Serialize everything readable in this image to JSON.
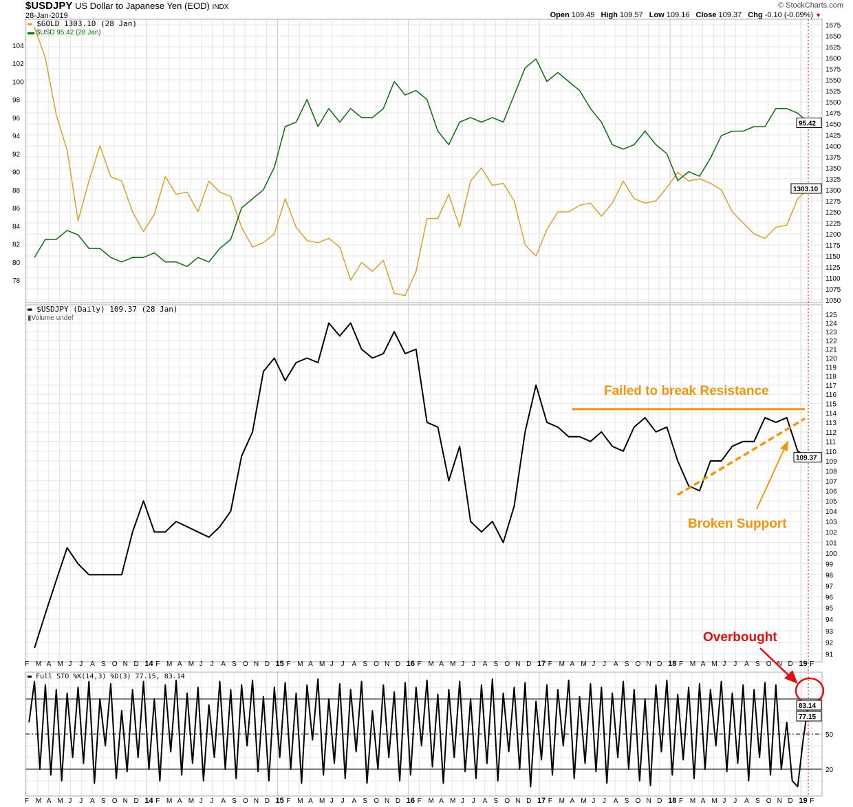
{
  "header": {
    "symbol": "$USDJPY",
    "description": "US Dollar to Japanese Yen (EOD)",
    "exchange": "INDX",
    "date": "28-Jan-2019",
    "brand": "© StockCharts.com",
    "open_label": "Open",
    "open": "109.49",
    "high_label": "High",
    "high": "109.57",
    "low_label": "Low",
    "low": "109.16",
    "close_label": "Close",
    "close": "109.37",
    "chg_label": "Chg",
    "chg": "-0.10 (-0.09%)"
  },
  "colors": {
    "gold": "#d9a12a",
    "usd": "#0b6b0b",
    "price": "#000000",
    "annotation": "#f0960f",
    "overbought": "#e01010"
  },
  "chart_data": [
    {
      "type": "line",
      "title": "Overlay panel",
      "legend": [
        "$GOLD 1303.10 (28 Jan)",
        "$USD 95.42 (28 Jan)"
      ],
      "x_start": "Feb 2013",
      "x_step": "month",
      "series": [
        {
          "name": "$GOLD",
          "axis": "right",
          "last_label": "1303.10",
          "values": [
            1670,
            1600,
            1470,
            1390,
            1230,
            1320,
            1400,
            1330,
            1320,
            1250,
            1205,
            1245,
            1330,
            1290,
            1295,
            1250,
            1320,
            1295,
            1285,
            1215,
            1170,
            1180,
            1200,
            1280,
            1215,
            1185,
            1180,
            1190,
            1170,
            1095,
            1135,
            1115,
            1140,
            1065,
            1060,
            1115,
            1235,
            1235,
            1290,
            1215,
            1320,
            1350,
            1310,
            1315,
            1275,
            1175,
            1150,
            1210,
            1250,
            1250,
            1265,
            1270,
            1240,
            1270,
            1320,
            1280,
            1270,
            1275,
            1305,
            1340,
            1320,
            1325,
            1315,
            1300,
            1250,
            1225,
            1200,
            1190,
            1215,
            1220,
            1280,
            1303.1
          ]
        },
        {
          "name": "$USD",
          "axis": "left",
          "last_label": "95.42",
          "values": [
            80.5,
            82.5,
            82.5,
            83.5,
            83,
            81.5,
            81.5,
            80.5,
            80,
            80.5,
            80.5,
            81,
            80,
            80,
            79.5,
            80.5,
            80,
            81.5,
            82.5,
            86,
            87,
            88,
            90.5,
            95,
            95.5,
            98,
            95,
            97,
            95.5,
            97,
            96,
            96,
            97,
            100,
            98.5,
            99,
            98,
            94.5,
            93,
            95.5,
            96,
            95.5,
            96,
            95.5,
            98.5,
            101.5,
            102.5,
            100,
            101,
            100,
            99,
            97,
            95.5,
            93,
            92.5,
            93,
            94.5,
            93,
            92,
            89,
            90,
            89.5,
            91.5,
            94,
            94.5,
            94.5,
            95,
            95,
            97,
            97,
            96.5,
            95.42
          ]
        }
      ],
      "right_ticks": [
        "1675",
        "1650",
        "1625",
        "1600",
        "1575",
        "1550",
        "1525",
        "1500",
        "1475",
        "1450",
        "1425",
        "1400",
        "1375",
        "1350",
        "1325",
        "1300",
        "1275",
        "1250",
        "1225",
        "1200",
        "1175",
        "1150",
        "1125",
        "1100",
        "1075",
        "1050"
      ],
      "left_ticks": [
        "104",
        "102",
        "100",
        "98",
        "96",
        "94",
        "92",
        "90",
        "88",
        "86",
        "84",
        "82",
        "80",
        "78"
      ],
      "ylim_right": [
        1050,
        1675
      ],
      "ylim_left": [
        78,
        104
      ]
    },
    {
      "type": "line",
      "title": "Price panel",
      "legend": [
        "$USDJPY (Daily) 109.37 (28 Jan)",
        "Volume undef"
      ],
      "scale": "log",
      "series": [
        {
          "name": "$USDJPY",
          "last_label": "109.37",
          "values": [
            91.5,
            94.5,
            97.5,
            100.5,
            99,
            98,
            98,
            98,
            98,
            102,
            105,
            102,
            102,
            103,
            102.5,
            102,
            101.5,
            102.5,
            104,
            109.5,
            112,
            118.5,
            120,
            117.5,
            119.5,
            120,
            119.5,
            124,
            122.5,
            124,
            121,
            120,
            120.5,
            123,
            120.5,
            121,
            113,
            112.5,
            107,
            110.5,
            103,
            102,
            103,
            101,
            104.5,
            112,
            117,
            113,
            112.5,
            111.5,
            111.5,
            111,
            112,
            110.5,
            110,
            112.5,
            113.5,
            112,
            112.5,
            109,
            106.5,
            106,
            109,
            109,
            110.5,
            111,
            111,
            113.5,
            113,
            113.5,
            110,
            109.37
          ]
        }
      ],
      "ylim": [
        91,
        125
      ],
      "ticks": [
        "125",
        "124",
        "123",
        "122",
        "121",
        "120",
        "119",
        "118",
        "117",
        "116",
        "115",
        "114",
        "113",
        "112",
        "111",
        "110",
        "109",
        "108",
        "107",
        "106",
        "105",
        "104",
        "103",
        "102",
        "101",
        "100",
        "99",
        "98",
        "97",
        "96",
        "95",
        "94",
        "93",
        "92",
        "91"
      ],
      "annotations": {
        "resistance_text": "Failed to break Resistance",
        "resistance_level": 114.4,
        "support_text": "Broken Support",
        "support_from": 105.6,
        "support_to": 113.4
      }
    },
    {
      "type": "line",
      "title": "Full STO %K(14,3) %D(3) 77.15, 83.14",
      "x_step": "half-month",
      "series": [
        {
          "name": "%K",
          "values": [
            60,
            95,
            20,
            92,
            15,
            88,
            10,
            85,
            30,
            90,
            25,
            95,
            8,
            80,
            40,
            93,
            12,
            70,
            18,
            88,
            30,
            95,
            20,
            80,
            10,
            92,
            35,
            96,
            15,
            85,
            25,
            90,
            10,
            75,
            30,
            95,
            20,
            88,
            12,
            92,
            40,
            96,
            18,
            82,
            10,
            90,
            30,
            94,
            20,
            85,
            8,
            92,
            45,
            97,
            15,
            80,
            25,
            93,
            12,
            88,
            35,
            95,
            8,
            70,
            20,
            92,
            30,
            86,
            10,
            94,
            15,
            90,
            40,
            96,
            22,
            84,
            8,
            88,
            30,
            95,
            18,
            80,
            12,
            92,
            25,
            97,
            10,
            85,
            35,
            90,
            20,
            94,
            5,
            78,
            28,
            92,
            15,
            88,
            40,
            96,
            12,
            82,
            25,
            93,
            18,
            90,
            8,
            85,
            30,
            95,
            20,
            88,
            10,
            80,
            6,
            92,
            35,
            96,
            15,
            84,
            28,
            90,
            12,
            93,
            20,
            88,
            40,
            95,
            18,
            85,
            25,
            92,
            10,
            88,
            30,
            94,
            15,
            92,
            20,
            60,
            10,
            5,
            45,
            77.15
          ]
        }
      ],
      "ylim": [
        0,
        100
      ],
      "ticks": [
        "50",
        "20"
      ],
      "levels": [
        80,
        50,
        20
      ],
      "value_tags": [
        "83.14",
        "77.15"
      ],
      "overbought_text": "Overbought"
    }
  ],
  "x_ticks": [
    "F",
    "M",
    "A",
    "M",
    "J",
    "J",
    "A",
    "S",
    "O",
    "N",
    "D",
    "14",
    "F",
    "M",
    "A",
    "M",
    "J",
    "J",
    "A",
    "S",
    "O",
    "N",
    "D",
    "15",
    "F",
    "M",
    "A",
    "M",
    "J",
    "J",
    "A",
    "S",
    "O",
    "N",
    "D",
    "16",
    "F",
    "M",
    "A",
    "M",
    "J",
    "J",
    "A",
    "S",
    "O",
    "N",
    "D",
    "17",
    "F",
    "M",
    "A",
    "M",
    "J",
    "J",
    "A",
    "S",
    "O",
    "N",
    "D",
    "18",
    "F",
    "M",
    "A",
    "M",
    "J",
    "J",
    "A",
    "S",
    "O",
    "N",
    "D",
    "19",
    "F"
  ]
}
